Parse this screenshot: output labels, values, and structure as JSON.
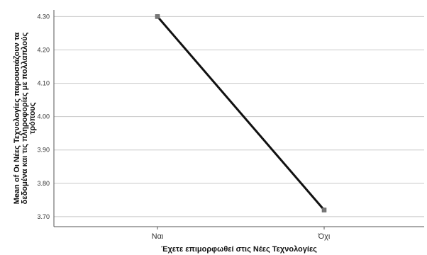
{
  "chart_data": {
    "type": "line",
    "categories": [
      "Ναι",
      "Όχι"
    ],
    "series": [
      {
        "values": [
          4.3,
          3.72
        ]
      }
    ],
    "xlabel": "Έχετε επιμορφωθεί στις Νέες Τεχνολογίες",
    "ylabel_lines": [
      "Mean of Οι Νέες Τεχνολογίες παρουσιάζουν τα",
      "δεδομένα και τις πληροφορίες με πολλαπλούς",
      "τρόπους"
    ],
    "yticks": [
      "3.70",
      "3.80",
      "3.90",
      "4.00",
      "4.10",
      "4.20",
      "4.30"
    ],
    "ylim": [
      3.67,
      4.32
    ],
    "grid": true,
    "line_color": "#111111",
    "marker_color": "#777777"
  }
}
